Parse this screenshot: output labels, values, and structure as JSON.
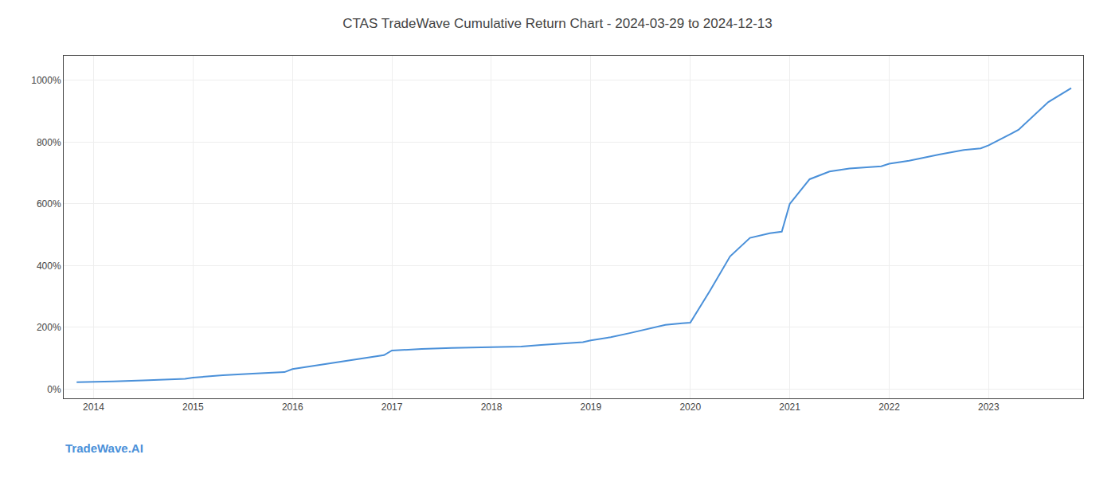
{
  "chart_data": {
    "type": "line",
    "title": "CTAS TradeWave Cumulative Return Chart - 2024-03-29 to 2024-12-13",
    "annotations": [
      "TradeWave.AI"
    ],
    "color": "#4a90d9",
    "grid": true,
    "x": [
      2013.83,
      2014.0,
      2014.2,
      2014.5,
      2014.75,
      2014.92,
      2015.0,
      2015.3,
      2015.6,
      2015.92,
      2016.0,
      2016.3,
      2016.6,
      2016.92,
      2017.0,
      2017.3,
      2017.6,
      2017.92,
      2018.0,
      2018.3,
      2018.5,
      2018.7,
      2018.92,
      2019.0,
      2019.2,
      2019.4,
      2019.6,
      2019.75,
      2019.92,
      2020.0,
      2020.2,
      2020.4,
      2020.6,
      2020.8,
      2020.92,
      2021.0,
      2021.2,
      2021.4,
      2021.6,
      2021.8,
      2021.92,
      2022.0,
      2022.2,
      2022.5,
      2022.75,
      2022.92,
      2023.0,
      2023.3,
      2023.6,
      2023.83
    ],
    "values": [
      22,
      23,
      25,
      28,
      30,
      33,
      37,
      45,
      50,
      55,
      65,
      80,
      95,
      110,
      125,
      130,
      133,
      135,
      136,
      138,
      143,
      148,
      152,
      158,
      168,
      182,
      198,
      208,
      213,
      215,
      320,
      430,
      490,
      505,
      510,
      600,
      680,
      705,
      715,
      720,
      722,
      730,
      740,
      760,
      775,
      780,
      790,
      840,
      930,
      975
    ],
    "xlim": [
      2013.7,
      2023.95
    ],
    "xticks": [
      2014,
      2015,
      2016,
      2017,
      2018,
      2019,
      2020,
      2021,
      2022,
      2023
    ],
    "ylim": [
      -30,
      1080
    ],
    "yticks": [
      {
        "value": 0,
        "label": "0%"
      },
      {
        "value": 200,
        "label": "200%"
      },
      {
        "value": 400,
        "label": "400%"
      },
      {
        "value": 600,
        "label": "600%"
      },
      {
        "value": 800,
        "label": "800%"
      },
      {
        "value": 1000,
        "label": "1000%"
      }
    ]
  }
}
